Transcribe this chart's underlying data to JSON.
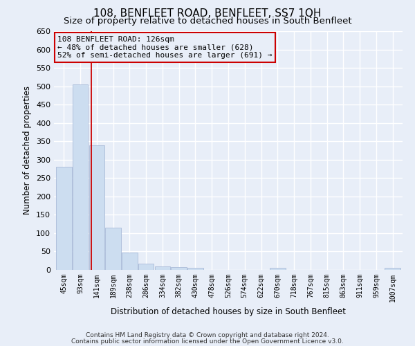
{
  "title": "108, BENFLEET ROAD, BENFLEET, SS7 1QH",
  "subtitle": "Size of property relative to detached houses in South Benfleet",
  "xlabel": "Distribution of detached houses by size in South Benfleet",
  "ylabel": "Number of detached properties",
  "footnote1": "Contains HM Land Registry data © Crown copyright and database right 2024.",
  "footnote2": "Contains public sector information licensed under the Open Government Licence v3.0.",
  "categories": [
    "45sqm",
    "93sqm",
    "141sqm",
    "189sqm",
    "238sqm",
    "286sqm",
    "334sqm",
    "382sqm",
    "430sqm",
    "478sqm",
    "526sqm",
    "574sqm",
    "622sqm",
    "670sqm",
    "718sqm",
    "767sqm",
    "815sqm",
    "863sqm",
    "911sqm",
    "959sqm",
    "1007sqm"
  ],
  "values": [
    280,
    505,
    340,
    115,
    47,
    17,
    10,
    8,
    5,
    0,
    0,
    0,
    0,
    5,
    0,
    0,
    0,
    0,
    0,
    0,
    5
  ],
  "bar_color": "#ccddf0",
  "bar_edge_color": "#aabbd8",
  "ylim": [
    0,
    650
  ],
  "yticks": [
    0,
    50,
    100,
    150,
    200,
    250,
    300,
    350,
    400,
    450,
    500,
    550,
    600,
    650
  ],
  "annotation_title": "108 BENFLEET ROAD: 126sqm",
  "annotation_line1": "← 48% of detached houses are smaller (628)",
  "annotation_line2": "52% of semi-detached houses are larger (691) →",
  "annotation_color": "#cc0000",
  "background_color": "#e8eef8",
  "grid_color": "#ffffff",
  "title_fontsize": 11,
  "subtitle_fontsize": 9.5
}
